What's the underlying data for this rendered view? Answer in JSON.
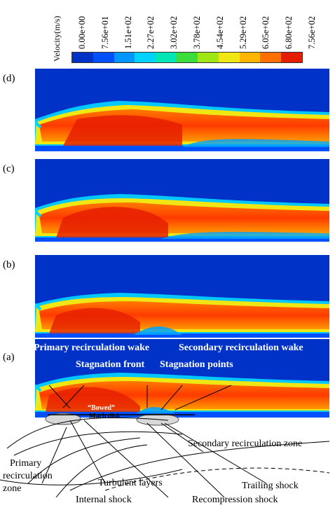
{
  "colorbar": {
    "title": "Velocity(m/s)",
    "ticks": [
      "0.00e+00",
      "7.56e+01",
      "1.51e+02",
      "2.27e+02",
      "3.02e+02",
      "3.78e+02",
      "4.54e+02",
      "5.29e+02",
      "6.05e+02",
      "6.80e+02",
      "7.56e+02"
    ],
    "colors": [
      "#0032c8",
      "#0050ff",
      "#0096ff",
      "#00d2ff",
      "#00e6b4",
      "#3cdc3c",
      "#a0e614",
      "#f0e614",
      "#ffb400",
      "#ff6e00",
      "#e61e00"
    ]
  },
  "panels": [
    {
      "label": "(d)"
    },
    {
      "label": "(c)"
    },
    {
      "label": "(b)"
    },
    {
      "label": "(a)"
    }
  ],
  "annotations": {
    "primary_wake": "Primary recirculation wake",
    "secondary_wake": "Secondary recirculation wake",
    "stagnation_front": "Stagnation front",
    "stagnation_points": "Stagnation points",
    "bowed": "“Bowed”",
    "mach_disk": "Mach disk",
    "secondary_zone": "Secondary recirculation zone",
    "primary_zone_1": "Primary",
    "primary_zone_2": "recirculation",
    "primary_zone_3": "zone",
    "turbulent_layers": "Turbulent layers",
    "trailing_shock": "Trailing shock",
    "internal_shock": "Internal shock",
    "recompression_shock": "Recompression shock"
  }
}
